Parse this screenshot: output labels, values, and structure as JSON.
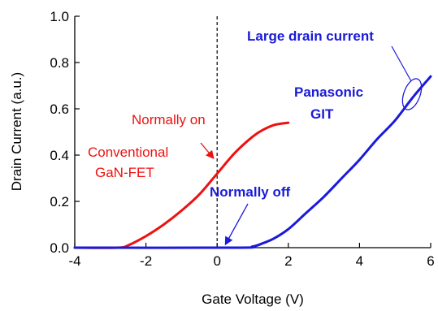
{
  "chart_data": {
    "type": "line",
    "xlabel": "Gate Voltage  (V)",
    "ylabel": "Drain Current  (a.u.)",
    "xlim": [
      -4,
      6
    ],
    "ylim": [
      0,
      1.0
    ],
    "xticks": [
      -4,
      -2,
      0,
      2,
      4,
      6
    ],
    "yticks": [
      "0.0",
      "0.2",
      "0.4",
      "0.6",
      "0.8",
      "1.0"
    ],
    "grid": false,
    "reference_line": {
      "x": 0,
      "style": "dashed"
    },
    "series": [
      {
        "color": "#ee1111",
        "x": [
          -4.0,
          -2.8,
          -2.5,
          -2.0,
          -1.5,
          -1.0,
          -0.5,
          0.0,
          0.5,
          1.0,
          1.3,
          1.6,
          2.0
        ],
        "y": [
          0.0,
          0.0,
          0.01,
          0.05,
          0.1,
          0.16,
          0.23,
          0.32,
          0.41,
          0.48,
          0.51,
          0.53,
          0.54
        ]
      },
      {
        "color": "#1a1adb",
        "x": [
          -4.0,
          0.5,
          1.0,
          1.3,
          1.6,
          2.0,
          2.5,
          3.0,
          3.5,
          4.0,
          4.5,
          5.0,
          5.5,
          6.0
        ],
        "y": [
          0.0,
          0.0,
          0.005,
          0.02,
          0.04,
          0.08,
          0.15,
          0.22,
          0.3,
          0.38,
          0.47,
          0.55,
          0.65,
          0.74
        ]
      }
    ],
    "annotations": {
      "normally_on": "Normally on",
      "conventional_1": "Conventional",
      "conventional_2": "GaN-FET",
      "normally_off": "Normally off",
      "panasonic_1": "Panasonic",
      "panasonic_2": "GIT",
      "large_drain": "Large drain current"
    },
    "colors": {
      "conventional": "#ee1111",
      "panasonic": "#1a1adb"
    }
  }
}
